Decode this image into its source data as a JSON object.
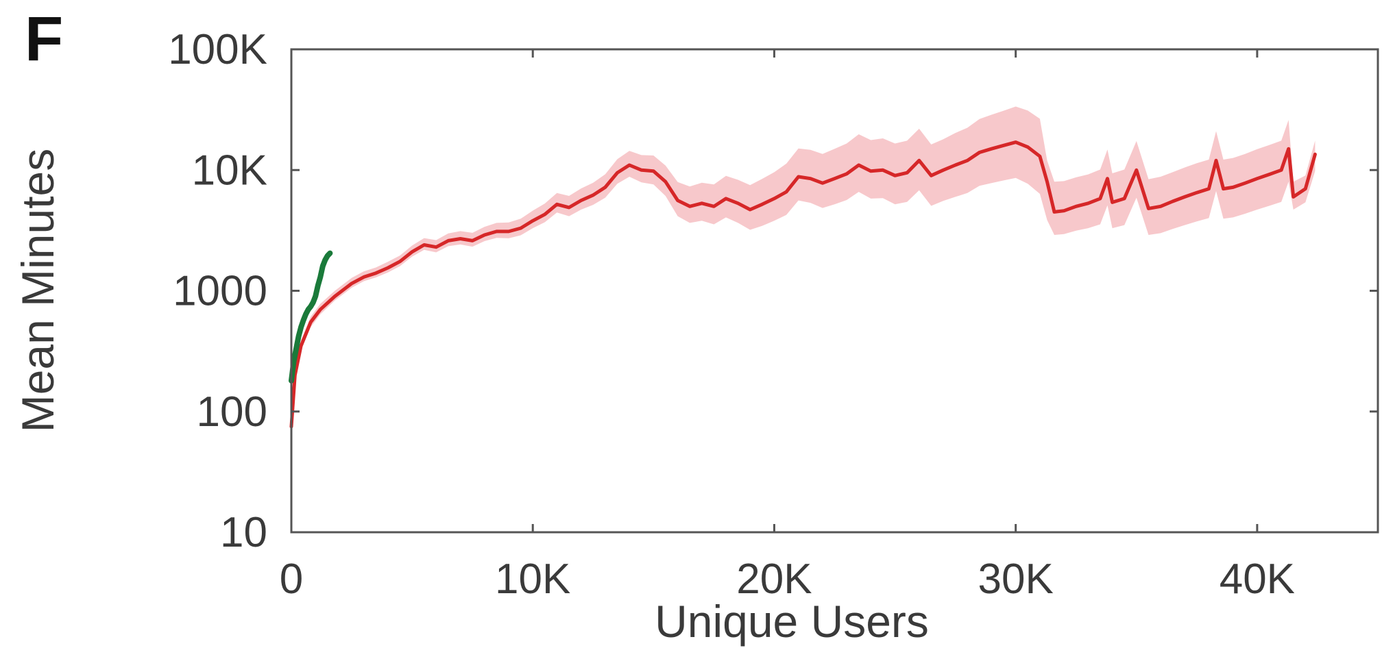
{
  "chart_data": {
    "type": "line",
    "panel_label": "F",
    "xlabel": "Unique Users",
    "ylabel": "Mean Minutes",
    "yscale": "log",
    "xlim": [
      0,
      45000
    ],
    "ylim": [
      10,
      100000
    ],
    "x_ticks": [
      0,
      10000,
      20000,
      30000,
      40000
    ],
    "x_tick_labels": [
      "0",
      "10K",
      "20K",
      "30K",
      "40K"
    ],
    "y_ticks": [
      10,
      100,
      1000,
      10000,
      100000
    ],
    "y_tick_labels": [
      "10",
      "100",
      "1000",
      "10K",
      "100K"
    ],
    "grid": false,
    "series": [
      {
        "color": "#d62728",
        "band_color": "#f4b6b9",
        "x": [
          0,
          150,
          400,
          800,
          1200,
          1800,
          2500,
          3000,
          3500,
          4000,
          4500,
          5000,
          5500,
          6000,
          6500,
          7000,
          7500,
          8000,
          8500,
          9000,
          9500,
          10000,
          10500,
          11000,
          11500,
          12000,
          12500,
          13000,
          13500,
          14000,
          14500,
          15000,
          15500,
          16000,
          16500,
          17000,
          17500,
          18000,
          18500,
          19000,
          19500,
          20000,
          20500,
          21000,
          21500,
          22000,
          22500,
          23000,
          23500,
          24000,
          24500,
          25000,
          25500,
          26000,
          26500,
          27000,
          27500,
          28000,
          28500,
          29000,
          29500,
          30000,
          30500,
          31000,
          31300,
          31600,
          32000,
          32500,
          33000,
          33500,
          33800,
          34000,
          34500,
          35000,
          35500,
          36000,
          36500,
          37000,
          37500,
          38000,
          38300,
          38600,
          39000,
          39500,
          40000,
          40500,
          41000,
          41300,
          41500,
          42000,
          42400
        ],
        "y": [
          75,
          200,
          350,
          550,
          700,
          900,
          1150,
          1300,
          1400,
          1550,
          1750,
          2100,
          2400,
          2300,
          2600,
          2700,
          2600,
          2900,
          3100,
          3100,
          3300,
          3800,
          4300,
          5200,
          4900,
          5600,
          6200,
          7200,
          9500,
          11000,
          10000,
          9800,
          8000,
          5600,
          5000,
          5300,
          5000,
          5800,
          5300,
          4700,
          5200,
          5800,
          6600,
          8800,
          8500,
          7800,
          8500,
          9300,
          11000,
          9800,
          10000,
          9000,
          9500,
          12000,
          9000,
          10000,
          11000,
          12000,
          14000,
          15000,
          16000,
          17000,
          15500,
          13000,
          8000,
          4500,
          4600,
          5000,
          5300,
          5800,
          8500,
          5400,
          5800,
          10000,
          4800,
          5000,
          5500,
          6000,
          6500,
          7000,
          12000,
          7000,
          7200,
          7800,
          8500,
          9200,
          10000,
          15000,
          6000,
          7000,
          13500
        ],
        "lower": [
          70,
          180,
          320,
          500,
          640,
          830,
          1060,
          1200,
          1290,
          1420,
          1600,
          1920,
          2180,
          2080,
          2340,
          2420,
          2320,
          2580,
          2740,
          2720,
          2880,
          3300,
          3700,
          4450,
          4150,
          4700,
          5150,
          5900,
          7700,
          8800,
          7900,
          7600,
          6100,
          4150,
          3650,
          3800,
          3550,
          4050,
          3650,
          3200,
          3450,
          3800,
          4250,
          5600,
          5350,
          4850,
          5200,
          5650,
          6600,
          5800,
          5850,
          5200,
          5450,
          6800,
          5050,
          5550,
          6000,
          6450,
          7400,
          7800,
          8200,
          8600,
          7700,
          6350,
          3850,
          2900,
          2950,
          3150,
          3300,
          3550,
          5100,
          3300,
          3500,
          5900,
          2900,
          3000,
          3250,
          3500,
          3750,
          4000,
          6700,
          3950,
          4050,
          4350,
          4700,
          5050,
          5450,
          8000,
          4700,
          5400,
          9800
        ],
        "upper": [
          85,
          225,
          390,
          610,
          780,
          1000,
          1280,
          1450,
          1560,
          1740,
          1960,
          2370,
          2730,
          2630,
          2990,
          3120,
          3020,
          3390,
          3650,
          3680,
          3950,
          4610,
          5280,
          6450,
          6110,
          7040,
          7850,
          9230,
          12300,
          14400,
          13300,
          13200,
          10900,
          7950,
          7300,
          7850,
          7600,
          8950,
          8300,
          7500,
          8450,
          9600,
          11300,
          15100,
          14700,
          13600,
          15000,
          16600,
          19800,
          17700,
          18300,
          16600,
          17500,
          22000,
          16300,
          18000,
          20300,
          22400,
          26500,
          28700,
          31000,
          33600,
          31100,
          26600,
          12000,
          8000,
          8100,
          8700,
          9200,
          10100,
          14800,
          9400,
          10100,
          17400,
          8400,
          8800,
          9600,
          10500,
          11400,
          12200,
          21000,
          12200,
          12600,
          13600,
          14900,
          16100,
          17500,
          26000,
          8000,
          9000,
          17500
        ]
      },
      {
        "color": "#1a7a3a",
        "x": [
          0,
          100,
          200,
          300,
          400,
          500,
          600,
          700,
          800,
          900,
          1000,
          1100,
          1200,
          1300,
          1400,
          1500,
          1600
        ],
        "y": [
          180,
          260,
          330,
          420,
          500,
          570,
          640,
          700,
          740,
          800,
          900,
          1100,
          1300,
          1600,
          1800,
          1950,
          2050
        ]
      }
    ]
  }
}
